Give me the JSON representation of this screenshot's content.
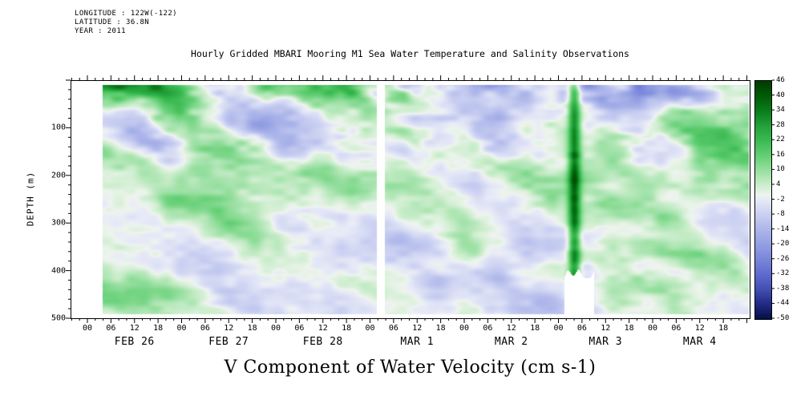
{
  "meta": {
    "longitude": "LONGITUDE : 122W(-122)",
    "latitude": "LATITUDE : 36.8N",
    "year": "YEAR : 2011"
  },
  "chart_data": {
    "type": "heatmap",
    "title": "Hourly Gridded MBARI Mooring M1 Sea Water Temperature and Salinity Observations",
    "xlabel_bottom": "V Component of Water Velocity (cm s-1)",
    "ylabel": "DEPTH (m)",
    "value_units": "cm s-1",
    "y_axis": {
      "min": 0,
      "max": 500,
      "tick_labels": [
        100,
        200,
        300,
        400,
        500
      ],
      "minor_step": 20
    },
    "x_axis": {
      "day_labels": [
        "FEB 26",
        "FEB 27",
        "FEB 28",
        "MAR 1",
        "MAR 2",
        "MAR 3",
        "MAR 4"
      ],
      "hour_tick_labels": [
        "00",
        "06",
        "12",
        "18"
      ],
      "minor_step_hours": 2
    },
    "colorbar": {
      "min": -50,
      "max": 46,
      "tick_labels": [
        46,
        40,
        34,
        28,
        22,
        16,
        10,
        4,
        -2,
        -8,
        -14,
        -20,
        -26,
        -32,
        -38,
        -44,
        -50
      ],
      "palette_stops": [
        {
          "v": 46,
          "color": "#003d00"
        },
        {
          "v": 40,
          "color": "#005c07"
        },
        {
          "v": 34,
          "color": "#0b7d1c"
        },
        {
          "v": 28,
          "color": "#23a239"
        },
        {
          "v": 22,
          "color": "#3cba52"
        },
        {
          "v": 16,
          "color": "#63cf74"
        },
        {
          "v": 10,
          "color": "#97dfa0"
        },
        {
          "v": 4,
          "color": "#cdeece"
        },
        {
          "v": 0,
          "color": "#eef4ee"
        },
        {
          "v": -2,
          "color": "#e7eaf7"
        },
        {
          "v": -8,
          "color": "#c9cff1"
        },
        {
          "v": -14,
          "color": "#adb6ea"
        },
        {
          "v": -20,
          "color": "#939fe3"
        },
        {
          "v": -26,
          "color": "#7a87da"
        },
        {
          "v": -32,
          "color": "#5f6ccd"
        },
        {
          "v": -38,
          "color": "#4450b4"
        },
        {
          "v": -44,
          "color": "#232c85"
        },
        {
          "v": -50,
          "color": "#070f4a"
        }
      ]
    },
    "typical_value_range": [
      -25,
      25
    ],
    "visible_features": [
      "patchy alternating light-green (positive) and periwinkle-blue (negative) velocity field over 0-500 m depth",
      "narrow full-depth white gap of missing data just after MAR 1 00h",
      "white missing-data patch below about 400 m near the MAR 2 / MAR 3 boundary",
      "narrow dark-green band of strong positive velocity near MAR 3 00-04h spanning the full depth"
    ]
  }
}
